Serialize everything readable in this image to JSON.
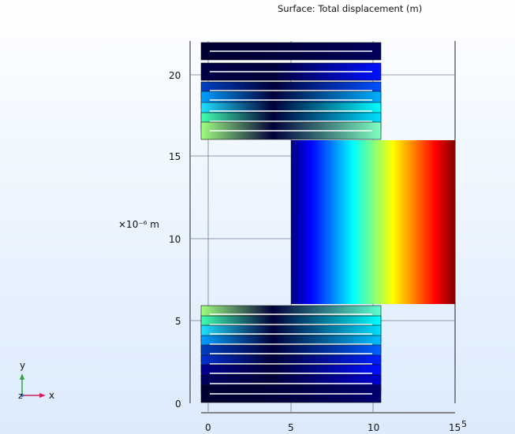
{
  "plot": {
    "title": "Surface: Total displacement (m)",
    "y_axis_unit_label": "×10⁻⁶ m",
    "x_axis_multiplier": "5",
    "x_ticks": [
      "0",
      "5",
      "10",
      "15"
    ],
    "y_ticks": [
      "0",
      "5",
      "10",
      "15",
      "20"
    ]
  },
  "triad": {
    "x_label": "x",
    "y_label": "y",
    "z_label": "z",
    "colors": {
      "x": "#d0225a",
      "y": "#2aa63a",
      "z": "#3a6fd8"
    }
  },
  "colormap": [
    "#00007f",
    "#0000ff",
    "#00ffff",
    "#ffff00",
    "#ff0000",
    "#7f0000"
  ]
}
